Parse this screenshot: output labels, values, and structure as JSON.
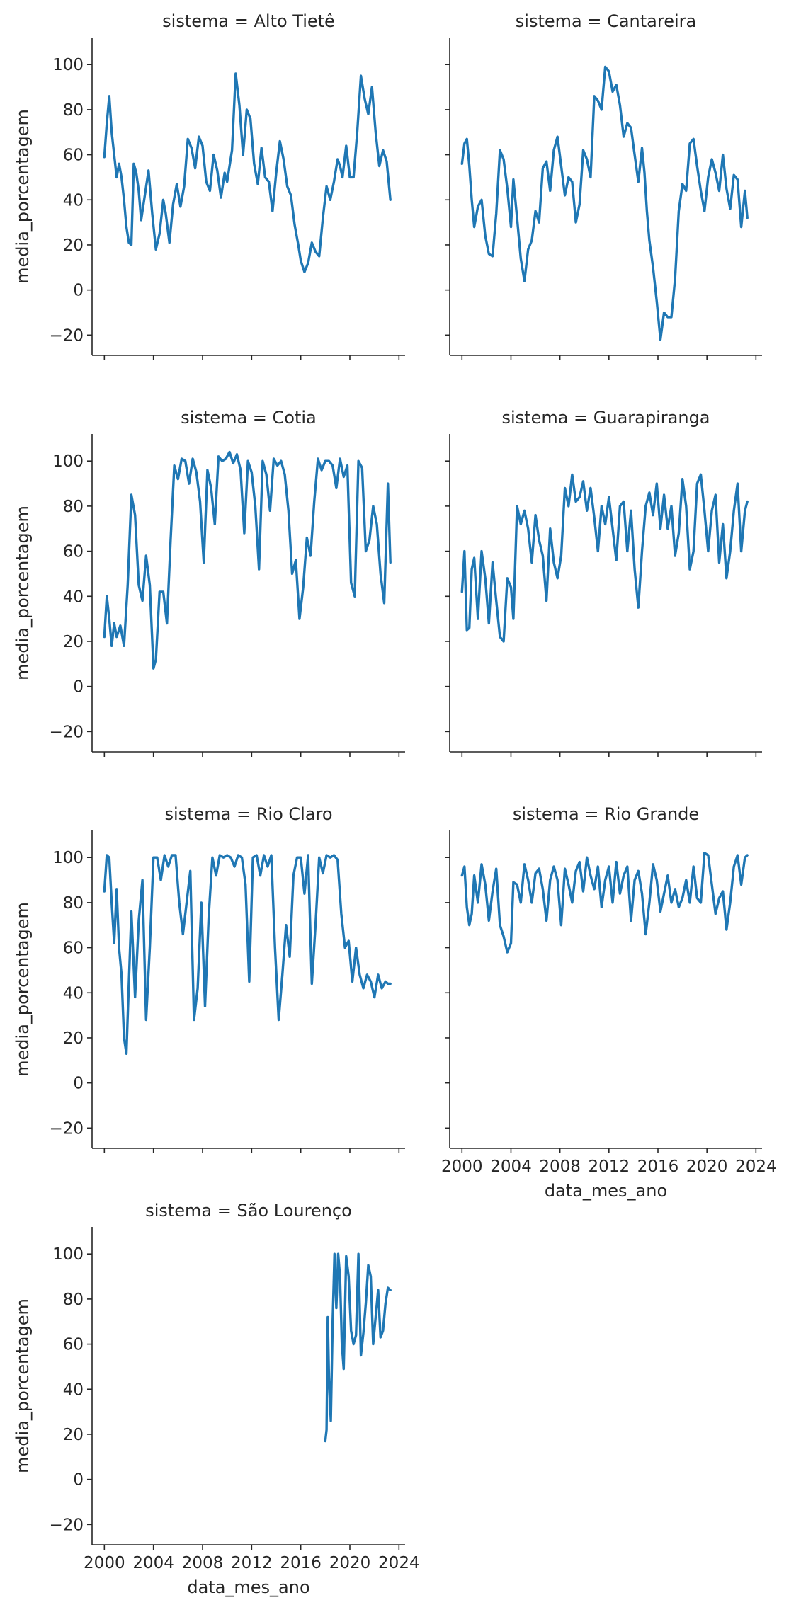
{
  "chart_data": {
    "type": "line",
    "layout": "facet-grid",
    "xlabel": "data_mes_ano",
    "ylabel": "media_porcentagem",
    "xlim": [
      1999,
      2024.5
    ],
    "ylim": [
      -29,
      112
    ],
    "xticks": [
      2000,
      2004,
      2008,
      2012,
      2016,
      2020,
      2024
    ],
    "yticks": [
      -20,
      0,
      20,
      40,
      60,
      80,
      100
    ],
    "line_color": "#1f77b4",
    "grid": false,
    "facets": [
      {
        "title": "sistema = Alto Tietê",
        "x": [
          2000.0,
          2000.2,
          2000.4,
          2000.6,
          2000.8,
          2001.0,
          2001.2,
          2001.4,
          2001.6,
          2001.8,
          2002.0,
          2002.2,
          2002.4,
          2002.6,
          2002.8,
          2003.0,
          2003.3,
          2003.6,
          2003.9,
          2004.2,
          2004.5,
          2004.8,
          2005.0,
          2005.3,
          2005.6,
          2005.9,
          2006.2,
          2006.5,
          2006.8,
          2007.1,
          2007.4,
          2007.7,
          2008.0,
          2008.3,
          2008.6,
          2008.9,
          2009.2,
          2009.5,
          2009.8,
          2010.0,
          2010.2,
          2010.4,
          2010.7,
          2011.0,
          2011.3,
          2011.6,
          2011.9,
          2012.2,
          2012.5,
          2012.8,
          2013.1,
          2013.4,
          2013.7,
          2014.0,
          2014.3,
          2014.6,
          2014.9,
          2015.2,
          2015.5,
          2015.8,
          2016.0,
          2016.3,
          2016.6,
          2016.9,
          2017.2,
          2017.5,
          2017.8,
          2018.1,
          2018.4,
          2018.7,
          2019.0,
          2019.2,
          2019.4,
          2019.7,
          2020.0,
          2020.3,
          2020.6,
          2020.9,
          2021.2,
          2021.5,
          2021.8,
          2022.1,
          2022.4,
          2022.7,
          2023.0,
          2023.3
        ],
        "y": [
          59,
          74,
          86,
          70,
          60,
          50,
          56,
          50,
          40,
          28,
          21,
          20,
          56,
          52,
          44,
          31,
          42,
          53,
          34,
          18,
          25,
          40,
          34,
          21,
          38,
          47,
          37,
          46,
          67,
          63,
          54,
          68,
          64,
          48,
          44,
          60,
          53,
          41,
          52,
          48,
          55,
          62,
          96,
          82,
          60,
          80,
          76,
          56,
          47,
          63,
          50,
          48,
          35,
          52,
          66,
          58,
          46,
          42,
          29,
          20,
          13,
          8,
          12,
          21,
          17,
          15,
          32,
          46,
          40,
          48,
          58,
          55,
          50,
          64,
          50,
          50,
          70,
          95,
          85,
          78,
          90,
          70,
          55,
          62,
          57,
          40
        ]
      },
      {
        "title": "sistema = Cantareira",
        "x": [
          2000.0,
          2000.2,
          2000.4,
          2000.6,
          2000.8,
          2001.0,
          2001.3,
          2001.6,
          2001.9,
          2002.2,
          2002.5,
          2002.8,
          2003.1,
          2003.4,
          2003.7,
          2004.0,
          2004.2,
          2004.5,
          2004.8,
          2005.1,
          2005.4,
          2005.7,
          2006.0,
          2006.3,
          2006.6,
          2006.9,
          2007.2,
          2007.5,
          2007.8,
          2008.1,
          2008.4,
          2008.7,
          2009.0,
          2009.3,
          2009.6,
          2009.9,
          2010.2,
          2010.5,
          2010.8,
          2011.1,
          2011.4,
          2011.7,
          2012.0,
          2012.3,
          2012.6,
          2012.9,
          2013.2,
          2013.5,
          2013.8,
          2014.1,
          2014.4,
          2014.7,
          2014.9,
          2015.1,
          2015.3,
          2015.6,
          2015.9,
          2016.2,
          2016.5,
          2016.8,
          2017.1,
          2017.4,
          2017.7,
          2018.0,
          2018.3,
          2018.6,
          2018.9,
          2019.2,
          2019.5,
          2019.8,
          2020.1,
          2020.4,
          2020.7,
          2021.0,
          2021.3,
          2021.6,
          2021.9,
          2022.2,
          2022.5,
          2022.8,
          2023.1,
          2023.3
        ],
        "y": [
          56,
          65,
          67,
          55,
          40,
          28,
          37,
          40,
          24,
          16,
          15,
          34,
          62,
          58,
          45,
          28,
          49,
          32,
          14,
          4,
          18,
          22,
          35,
          30,
          54,
          57,
          44,
          62,
          68,
          55,
          42,
          50,
          48,
          30,
          38,
          62,
          58,
          50,
          86,
          84,
          80,
          99,
          97,
          88,
          91,
          82,
          68,
          74,
          72,
          60,
          48,
          63,
          52,
          35,
          22,
          10,
          -5,
          -22,
          -10,
          -12,
          -12,
          5,
          35,
          47,
          44,
          65,
          67,
          55,
          44,
          35,
          50,
          58,
          52,
          44,
          60,
          45,
          36,
          51,
          49,
          28,
          44,
          32
        ]
      },
      {
        "title": "sistema = Cotia",
        "x": [
          2000.0,
          2000.2,
          2000.4,
          2000.6,
          2000.8,
          2001.0,
          2001.3,
          2001.6,
          2001.9,
          2002.2,
          2002.5,
          2002.8,
          2003.1,
          2003.4,
          2003.7,
          2004.0,
          2004.2,
          2004.5,
          2004.8,
          2005.1,
          2005.4,
          2005.7,
          2006.0,
          2006.3,
          2006.6,
          2006.9,
          2007.2,
          2007.5,
          2007.8,
          2008.1,
          2008.4,
          2008.7,
          2009.0,
          2009.3,
          2009.6,
          2009.9,
          2010.2,
          2010.5,
          2010.8,
          2011.1,
          2011.4,
          2011.7,
          2012.0,
          2012.3,
          2012.6,
          2012.9,
          2013.2,
          2013.5,
          2013.8,
          2014.1,
          2014.4,
          2014.7,
          2015.0,
          2015.3,
          2015.6,
          2015.9,
          2016.2,
          2016.5,
          2016.8,
          2017.1,
          2017.4,
          2017.7,
          2018.0,
          2018.3,
          2018.6,
          2018.9,
          2019.2,
          2019.5,
          2019.8,
          2020.1,
          2020.4,
          2020.7,
          2021.0,
          2021.3,
          2021.6,
          2021.9,
          2022.2,
          2022.5,
          2022.8,
          2023.1,
          2023.3
        ],
        "y": [
          22,
          40,
          30,
          18,
          28,
          22,
          27,
          18,
          45,
          85,
          76,
          45,
          38,
          58,
          45,
          8,
          12,
          42,
          42,
          28,
          65,
          98,
          92,
          101,
          100,
          90,
          101,
          95,
          82,
          55,
          96,
          88,
          72,
          102,
          100,
          101,
          104,
          99,
          103,
          96,
          68,
          100,
          95,
          80,
          52,
          100,
          94,
          78,
          101,
          98,
          100,
          94,
          78,
          50,
          56,
          30,
          44,
          66,
          58,
          82,
          101,
          96,
          100,
          100,
          98,
          88,
          101,
          93,
          98,
          46,
          40,
          100,
          97,
          60,
          65,
          80,
          72,
          50,
          37,
          90,
          55
        ]
      },
      {
        "title": "sistema = Guarapiranga",
        "x": [
          2000.0,
          2000.2,
          2000.4,
          2000.6,
          2000.8,
          2001.0,
          2001.3,
          2001.6,
          2001.9,
          2002.2,
          2002.5,
          2002.8,
          2003.1,
          2003.4,
          2003.7,
          2004.0,
          2004.2,
          2004.5,
          2004.8,
          2005.1,
          2005.4,
          2005.7,
          2006.0,
          2006.3,
          2006.6,
          2006.9,
          2007.2,
          2007.5,
          2007.8,
          2008.1,
          2008.4,
          2008.7,
          2009.0,
          2009.3,
          2009.6,
          2009.9,
          2010.2,
          2010.5,
          2010.8,
          2011.1,
          2011.4,
          2011.7,
          2012.0,
          2012.3,
          2012.6,
          2012.9,
          2013.2,
          2013.5,
          2013.8,
          2014.1,
          2014.4,
          2014.7,
          2015.0,
          2015.3,
          2015.6,
          2015.9,
          2016.2,
          2016.5,
          2016.8,
          2017.1,
          2017.4,
          2017.7,
          2018.0,
          2018.3,
          2018.6,
          2018.9,
          2019.2,
          2019.5,
          2019.8,
          2020.1,
          2020.4,
          2020.7,
          2021.0,
          2021.3,
          2021.6,
          2021.9,
          2022.2,
          2022.5,
          2022.8,
          2023.1,
          2023.3
        ],
        "y": [
          42,
          60,
          25,
          26,
          52,
          57,
          30,
          60,
          48,
          28,
          55,
          38,
          22,
          20,
          48,
          44,
          30,
          80,
          72,
          78,
          70,
          55,
          76,
          65,
          58,
          38,
          70,
          55,
          48,
          58,
          88,
          80,
          94,
          82,
          84,
          91,
          78,
          88,
          75,
          60,
          80,
          72,
          84,
          70,
          56,
          80,
          82,
          60,
          78,
          52,
          35,
          60,
          80,
          86,
          76,
          90,
          70,
          85,
          70,
          80,
          58,
          68,
          92,
          80,
          52,
          60,
          90,
          94,
          78,
          60,
          78,
          85,
          55,
          72,
          48,
          60,
          78,
          90,
          60,
          78,
          82
        ]
      },
      {
        "title": "sistema = Rio Claro",
        "x": [
          2000.0,
          2000.2,
          2000.4,
          2000.6,
          2000.8,
          2001.0,
          2001.2,
          2001.4,
          2001.6,
          2001.8,
          2002.0,
          2002.2,
          2002.5,
          2002.8,
          2003.1,
          2003.4,
          2003.7,
          2004.0,
          2004.3,
          2004.6,
          2004.9,
          2005.2,
          2005.5,
          2005.8,
          2006.1,
          2006.4,
          2006.7,
          2007.0,
          2007.3,
          2007.6,
          2007.9,
          2008.2,
          2008.5,
          2008.8,
          2009.1,
          2009.4,
          2009.7,
          2010.0,
          2010.3,
          2010.6,
          2010.9,
          2011.2,
          2011.5,
          2011.8,
          2012.1,
          2012.4,
          2012.7,
          2013.0,
          2013.3,
          2013.6,
          2013.9,
          2014.2,
          2014.5,
          2014.8,
          2015.1,
          2015.4,
          2015.7,
          2016.0,
          2016.3,
          2016.6,
          2016.9,
          2017.2,
          2017.5,
          2017.8,
          2018.1,
          2018.4,
          2018.7,
          2019.0,
          2019.3,
          2019.6,
          2019.9,
          2020.2,
          2020.5,
          2020.8,
          2021.1,
          2021.4,
          2021.7,
          2022.0,
          2022.3,
          2022.6,
          2022.9,
          2023.1,
          2023.3
        ],
        "y": [
          85,
          101,
          100,
          80,
          62,
          86,
          60,
          48,
          20,
          13,
          45,
          76,
          38,
          72,
          90,
          28,
          60,
          100,
          100,
          90,
          101,
          96,
          101,
          101,
          80,
          66,
          80,
          94,
          28,
          42,
          80,
          34,
          74,
          100,
          92,
          101,
          100,
          101,
          100,
          96,
          101,
          100,
          88,
          45,
          100,
          101,
          92,
          101,
          96,
          101,
          60,
          28,
          48,
          70,
          56,
          92,
          100,
          100,
          84,
          101,
          44,
          70,
          100,
          93,
          101,
          100,
          101,
          99,
          75,
          60,
          63,
          45,
          60,
          48,
          42,
          48,
          45,
          38,
          48,
          42,
          45,
          44,
          44
        ]
      },
      {
        "title": "sistema = Rio Grande",
        "x": [
          2000.0,
          2000.2,
          2000.4,
          2000.6,
          2000.8,
          2001.0,
          2001.3,
          2001.6,
          2001.9,
          2002.2,
          2002.5,
          2002.8,
          2003.1,
          2003.4,
          2003.7,
          2004.0,
          2004.2,
          2004.5,
          2004.8,
          2005.1,
          2005.4,
          2005.7,
          2006.0,
          2006.3,
          2006.6,
          2006.9,
          2007.2,
          2007.5,
          2007.8,
          2008.1,
          2008.4,
          2008.7,
          2009.0,
          2009.3,
          2009.6,
          2009.9,
          2010.2,
          2010.5,
          2010.8,
          2011.1,
          2011.4,
          2011.7,
          2012.0,
          2012.3,
          2012.6,
          2012.9,
          2013.2,
          2013.5,
          2013.8,
          2014.1,
          2014.4,
          2014.7,
          2015.0,
          2015.3,
          2015.6,
          2015.9,
          2016.2,
          2016.5,
          2016.8,
          2017.1,
          2017.4,
          2017.7,
          2018.0,
          2018.3,
          2018.6,
          2018.9,
          2019.2,
          2019.5,
          2019.8,
          2020.1,
          2020.4,
          2020.7,
          2021.0,
          2021.3,
          2021.6,
          2021.9,
          2022.2,
          2022.5,
          2022.8,
          2023.1,
          2023.3
        ],
        "y": [
          92,
          96,
          78,
          70,
          75,
          92,
          80,
          97,
          88,
          72,
          85,
          95,
          70,
          65,
          58,
          62,
          89,
          88,
          80,
          97,
          90,
          80,
          93,
          95,
          86,
          72,
          90,
          96,
          90,
          70,
          95,
          88,
          80,
          94,
          98,
          85,
          100,
          92,
          86,
          96,
          78,
          90,
          96,
          80,
          98,
          84,
          92,
          96,
          72,
          90,
          94,
          84,
          66,
          80,
          97,
          90,
          76,
          84,
          92,
          80,
          86,
          78,
          82,
          90,
          80,
          96,
          82,
          80,
          102,
          101,
          88,
          75,
          82,
          85,
          68,
          80,
          96,
          101,
          88,
          100,
          101
        ]
      },
      {
        "title": "sistema = São Lourenço",
        "x": [
          2018.0,
          2018.1,
          2018.2,
          2018.3,
          2018.45,
          2018.6,
          2018.75,
          2018.9,
          2019.05,
          2019.2,
          2019.35,
          2019.5,
          2019.7,
          2019.9,
          2020.1,
          2020.3,
          2020.5,
          2020.7,
          2020.9,
          2021.1,
          2021.3,
          2021.5,
          2021.7,
          2021.9,
          2022.1,
          2022.3,
          2022.5,
          2022.7,
          2022.9,
          2023.1,
          2023.3
        ],
        "y": [
          17,
          22,
          72,
          45,
          26,
          70,
          100,
          76,
          100,
          90,
          60,
          49,
          99,
          90,
          66,
          60,
          64,
          100,
          55,
          65,
          78,
          95,
          90,
          60,
          72,
          84,
          63,
          66,
          78,
          85,
          84
        ]
      }
    ]
  }
}
